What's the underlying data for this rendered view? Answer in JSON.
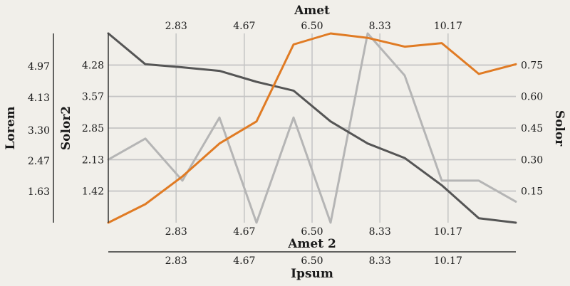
{
  "chart_data": {
    "type": "line",
    "x": [
      1,
      2,
      3,
      4,
      5,
      6,
      7,
      8,
      9,
      10,
      11,
      12
    ],
    "xlim": [
      1,
      12
    ],
    "x_axes": [
      {
        "label": "Amet",
        "position": "top",
        "ticks": [
          2.83,
          4.67,
          6.5,
          8.33,
          10.17
        ],
        "tick_labels": [
          "2.83",
          "4.67",
          "6.50",
          "8.33",
          "10.17"
        ]
      },
      {
        "label": "Amet 2",
        "position": "bottom",
        "ticks": [
          2.83,
          4.67,
          6.5,
          8.33,
          10.17
        ],
        "tick_labels": [
          "2.83",
          "4.67",
          "6.50",
          "8.33",
          "10.17"
        ]
      },
      {
        "label": "Ipsum",
        "position": "bottom-outer",
        "ticks": [
          2.83,
          4.67,
          6.5,
          8.33,
          10.17
        ],
        "tick_labels": [
          "2.83",
          "4.67",
          "6.50",
          "8.33",
          "10.17"
        ]
      }
    ],
    "y_axes": [
      {
        "label": "Lorem",
        "position": "left-outer",
        "ticks": [
          "1.63",
          "2.47",
          "3.30",
          "4.13",
          "4.97"
        ]
      },
      {
        "label": "Solor2",
        "position": "left",
        "ylim": [
          0.7,
          5.0
        ],
        "ticks": [
          "1.42",
          "2.13",
          "2.85",
          "3.57",
          "4.28"
        ]
      },
      {
        "label": "Solor",
        "position": "right",
        "ylim": [
          0.0,
          0.9
        ],
        "ticks": [
          "0.15",
          "0.30",
          "0.45",
          "0.60",
          "0.75"
        ]
      }
    ],
    "grid": true,
    "series": [
      {
        "axis": "left",
        "color": "#555555",
        "values": [
          5.0,
          4.3,
          4.23,
          4.15,
          3.9,
          3.7,
          3.0,
          2.5,
          2.17,
          1.55,
          0.8,
          0.7
        ]
      },
      {
        "axis": "left",
        "color": "#e07b24",
        "values": [
          0.7,
          1.12,
          1.75,
          2.5,
          3.0,
          4.75,
          5.0,
          4.9,
          4.7,
          4.78,
          4.08,
          4.3
        ]
      },
      {
        "axis": "right",
        "color": "#b5b5b5",
        "values": [
          0.3,
          0.4,
          0.2,
          0.5,
          0.0,
          0.5,
          0.0,
          0.9,
          0.7,
          0.2,
          0.2,
          0.1
        ]
      }
    ]
  }
}
